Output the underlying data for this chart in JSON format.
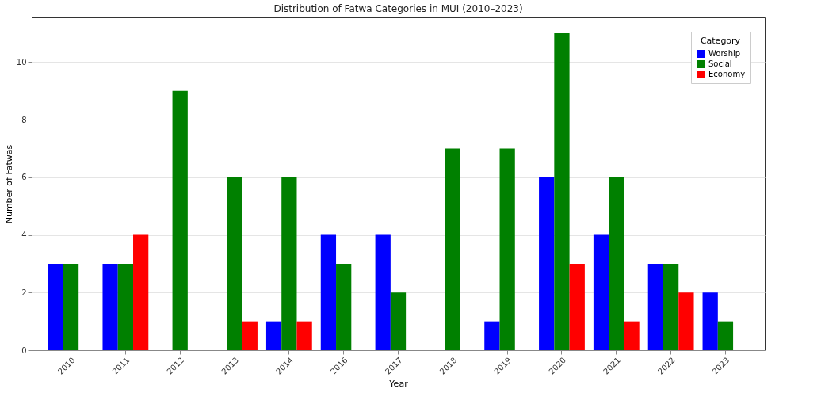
{
  "chart_data": {
    "type": "bar",
    "title": "Distribution of Fatwa Categories in MUI (2010–2023)",
    "xlabel": "Year",
    "ylabel": "Number of Fatwas",
    "legend_title": "Category",
    "categories": [
      "2010",
      "2011",
      "2012",
      "2013",
      "2014",
      "2016",
      "2017",
      "2018",
      "2019",
      "2020",
      "2021",
      "2022",
      "2023"
    ],
    "series": [
      {
        "name": "Worship",
        "color": "#0000ff",
        "values": [
          3,
          3,
          0,
          0,
          1,
          4,
          4,
          0,
          1,
          6,
          4,
          3,
          2
        ]
      },
      {
        "name": "Social",
        "color": "#008000",
        "values": [
          3,
          3,
          9,
          6,
          6,
          3,
          2,
          7,
          7,
          11,
          6,
          3,
          1
        ]
      },
      {
        "name": "Economy",
        "color": "#ff0000",
        "values": [
          0,
          4,
          0,
          1,
          1,
          0,
          0,
          0,
          0,
          3,
          1,
          2,
          0
        ]
      }
    ],
    "ylim": [
      0,
      11.55
    ],
    "yticks": [
      0,
      2,
      4,
      6,
      8,
      10
    ],
    "grid": "y",
    "legend": "top right"
  }
}
